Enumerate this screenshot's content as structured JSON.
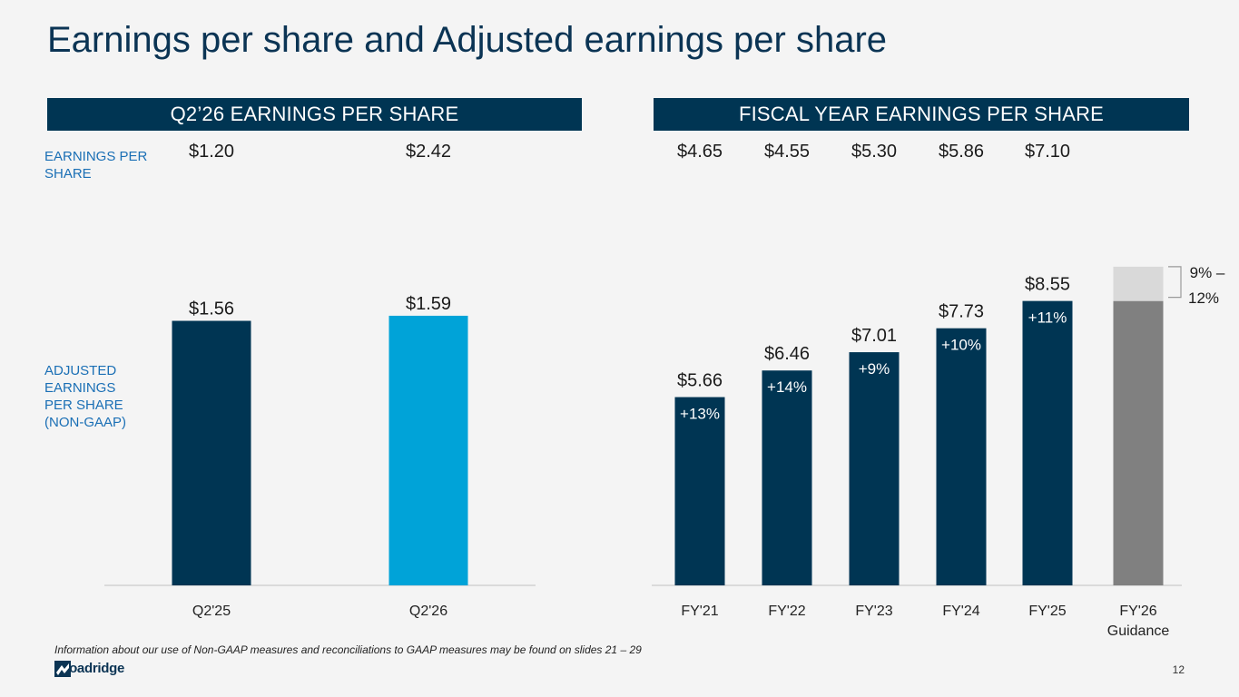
{
  "slide": {
    "title": "Earnings per share and Adjusted earnings per share",
    "page_number": "12",
    "footnote": "Information about our use of Non-GAAP measures and reconciliations to GAAP measures may be found on slides 21 – 29",
    "logo_text": "Broadridge",
    "colors": {
      "navy": "#003553",
      "light_blue": "#00a3d8",
      "gray": "#808080",
      "light_gray": "#d9d9d9",
      "label_blue": "#1a6fb5"
    }
  },
  "sections": {
    "q2_title": "Q2’26 EARNINGS PER SHARE",
    "fy_title": "FISCAL YEAR EARNINGS PER SHARE"
  },
  "row_labels": {
    "eps": "EARNINGS PER SHARE",
    "adjusted": "ADJUSTED EARNINGS PER SHARE (NON-GAAP)"
  },
  "chart_data": [
    {
      "type": "bar",
      "title": "Q2’26 EARNINGS PER SHARE",
      "categories": [
        "Q2'25",
        "Q2'26"
      ],
      "values": [
        1.56,
        1.59
      ],
      "value_labels": [
        "$1.56",
        "$1.59"
      ],
      "gaap_eps": [
        "$1.20",
        "$2.42"
      ],
      "colors": [
        "#003553",
        "#00a3d8"
      ],
      "ylim": [
        0,
        1.9
      ]
    },
    {
      "type": "bar",
      "title": "FISCAL YEAR EARNINGS PER SHARE",
      "categories": [
        "FY'21",
        "FY'22",
        "FY'23",
        "FY'24",
        "FY'25",
        "FY'26 Guidance"
      ],
      "values": [
        5.66,
        6.46,
        7.01,
        7.73,
        8.55,
        8.55
      ],
      "value_labels": [
        "$5.66",
        "$6.46",
        "$7.01",
        "$7.73",
        "$8.55",
        ""
      ],
      "growth_labels": [
        "+13%",
        "+14%",
        "+9%",
        "+10%",
        "+11%",
        ""
      ],
      "gaap_eps": [
        "$4.65",
        "$4.55",
        "$5.30",
        "$5.86",
        "$7.10"
      ],
      "guidance": {
        "base": 8.55,
        "low": 9.32,
        "high": 9.58,
        "label_line1": "9% –",
        "label_line2": "12%"
      },
      "ylim": [
        0,
        9.6
      ]
    }
  ]
}
